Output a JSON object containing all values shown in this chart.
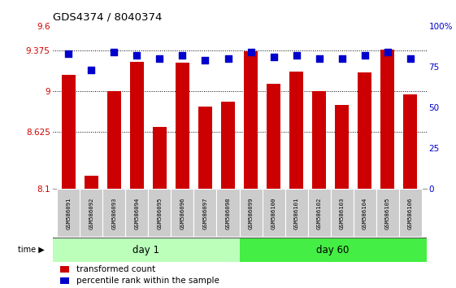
{
  "title": "GDS4374 / 8040374",
  "samples": [
    "GSM586091",
    "GSM586092",
    "GSM586093",
    "GSM586094",
    "GSM586095",
    "GSM586096",
    "GSM586097",
    "GSM586098",
    "GSM586099",
    "GSM586100",
    "GSM586101",
    "GSM586102",
    "GSM586103",
    "GSM586104",
    "GSM586105",
    "GSM586106"
  ],
  "bar_values": [
    9.15,
    8.22,
    9.0,
    9.27,
    8.67,
    9.26,
    8.86,
    8.9,
    9.37,
    9.07,
    9.18,
    9.0,
    8.87,
    9.17,
    9.38,
    8.97
  ],
  "dot_values": [
    83,
    73,
    84,
    82,
    80,
    82,
    79,
    80,
    84,
    81,
    82,
    80,
    80,
    82,
    84,
    80
  ],
  "ylim_left": [
    8.1,
    9.6
  ],
  "ylim_right": [
    0,
    100
  ],
  "yticks_left": [
    8.1,
    8.625,
    9.0,
    9.375,
    9.6
  ],
  "ytick_labels_left": [
    "8.1",
    "8.625",
    "9",
    "9.375",
    "9.6"
  ],
  "yticks_right": [
    0,
    25,
    50,
    75,
    100
  ],
  "ytick_labels_right": [
    "0",
    "25",
    "50",
    "75",
    "100%"
  ],
  "hlines": [
    8.625,
    9.0,
    9.375
  ],
  "bar_color": "#cc0000",
  "dot_color": "#0000cc",
  "day1_label": "day 1",
  "day60_label": "day 60",
  "day1_color": "#bbffbb",
  "day60_color": "#44ee44",
  "sample_box_color": "#cccccc",
  "legend_bar_label": "transformed count",
  "legend_dot_label": "percentile rank within the sample",
  "tick_label_color_left": "#cc0000",
  "tick_label_color_right": "#0000cc",
  "bar_width": 0.6,
  "dot_size": 28
}
